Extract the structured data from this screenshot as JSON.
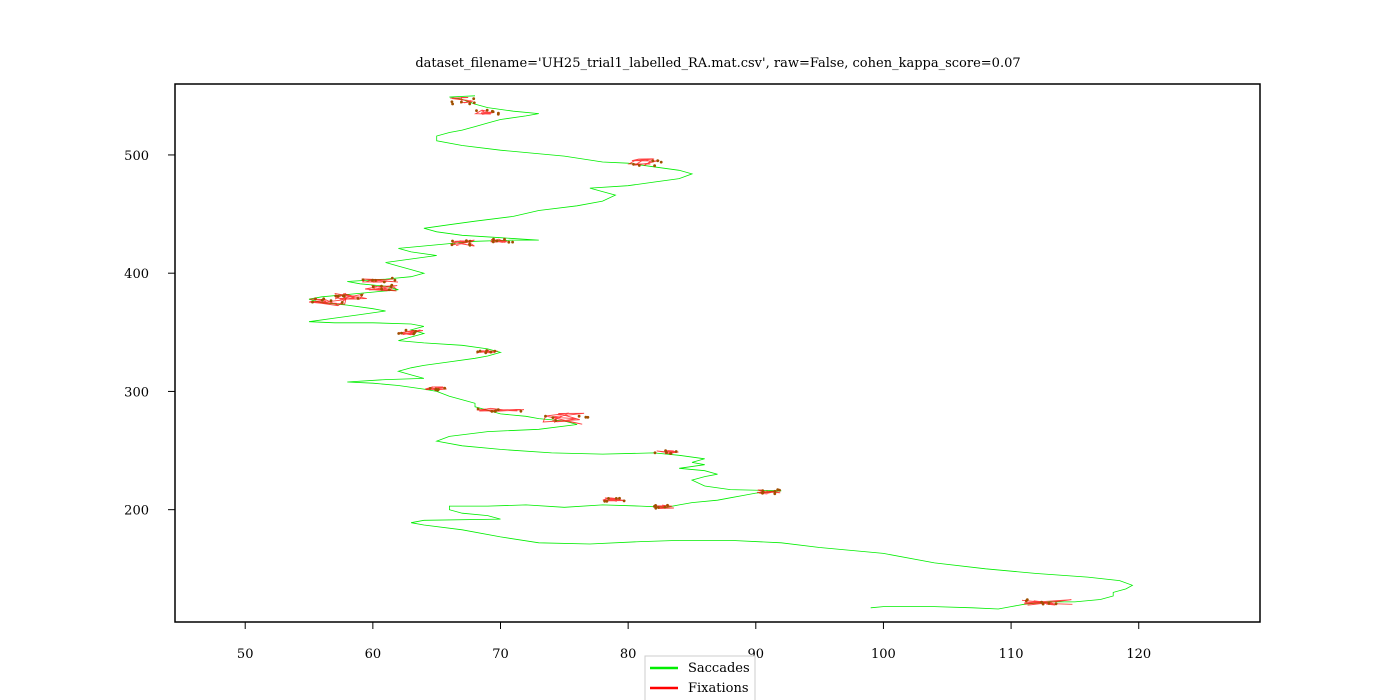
{
  "chart_data": {
    "type": "line",
    "title": "dataset_filename='UH25_trial1_labelled_RA.mat.csv', raw=False, cohen_kappa_score=0.07",
    "xlabel": "",
    "ylabel": "",
    "xlim": [
      44.5,
      129.5
    ],
    "ylim": [
      105,
      560
    ],
    "x_ticks": [
      50,
      60,
      70,
      80,
      90,
      100,
      110,
      120
    ],
    "y_ticks": [
      200,
      300,
      400,
      500
    ],
    "grid": false,
    "legend_position": "bottom-center",
    "series": [
      {
        "name": "Saccades",
        "color": "#00ee00",
        "points": [
          [
            99,
            117
          ],
          [
            100,
            118
          ],
          [
            104,
            118
          ],
          [
            107,
            117
          ],
          [
            109,
            116
          ],
          [
            110,
            118
          ],
          [
            111,
            120
          ],
          [
            113,
            122
          ],
          [
            115,
            122
          ],
          [
            117,
            124
          ],
          [
            118,
            127
          ],
          [
            118,
            130
          ],
          [
            119,
            133
          ],
          [
            119.5,
            136
          ],
          [
            118.5,
            140
          ],
          [
            116,
            143
          ],
          [
            112,
            146
          ],
          [
            108,
            150
          ],
          [
            104,
            155
          ],
          [
            100,
            163
          ],
          [
            95,
            168
          ],
          [
            92,
            172
          ],
          [
            88,
            174
          ],
          [
            84,
            174
          ],
          [
            81,
            173
          ],
          [
            77,
            171
          ],
          [
            73,
            172
          ],
          [
            70,
            177
          ],
          [
            67,
            183
          ],
          [
            64,
            187
          ],
          [
            63,
            189
          ],
          [
            64,
            191
          ],
          [
            70,
            192
          ],
          [
            69,
            195
          ],
          [
            67,
            197
          ],
          [
            66,
            200
          ],
          [
            66,
            203
          ],
          [
            69,
            203
          ],
          [
            72,
            204
          ],
          [
            75,
            202
          ],
          [
            78,
            204
          ],
          [
            81,
            203
          ],
          [
            83,
            202
          ],
          [
            84,
            204
          ],
          [
            85,
            206
          ],
          [
            87,
            208
          ],
          [
            88,
            210
          ],
          [
            89,
            212
          ],
          [
            90,
            214
          ],
          [
            92,
            216
          ],
          [
            88,
            217
          ],
          [
            86,
            220
          ],
          [
            85,
            225
          ],
          [
            86,
            228
          ],
          [
            87,
            230
          ],
          [
            86,
            233
          ],
          [
            84,
            235
          ],
          [
            86,
            238
          ],
          [
            85,
            240
          ],
          [
            86,
            243
          ],
          [
            84,
            246
          ],
          [
            82,
            248
          ],
          [
            78,
            247
          ],
          [
            74,
            248
          ],
          [
            70,
            251
          ],
          [
            67,
            254
          ],
          [
            65,
            258
          ],
          [
            66,
            262
          ],
          [
            69,
            266
          ],
          [
            73,
            268
          ],
          [
            76,
            272
          ],
          [
            75,
            275
          ],
          [
            73,
            277
          ],
          [
            72,
            279
          ],
          [
            70,
            281
          ],
          [
            69,
            284
          ],
          [
            68,
            287
          ],
          [
            68,
            290
          ],
          [
            67,
            293
          ],
          [
            66,
            296
          ],
          [
            65,
            300
          ],
          [
            64,
            302
          ],
          [
            62,
            305
          ],
          [
            60,
            307
          ],
          [
            58,
            308
          ],
          [
            61,
            310
          ],
          [
            64,
            311
          ],
          [
            63,
            314
          ],
          [
            62,
            317
          ],
          [
            63,
            320
          ],
          [
            64,
            322
          ],
          [
            66,
            325
          ],
          [
            68,
            328
          ],
          [
            69,
            330
          ],
          [
            70,
            333
          ],
          [
            69,
            336
          ],
          [
            67,
            339
          ],
          [
            64,
            341
          ],
          [
            62,
            343
          ],
          [
            63,
            346
          ],
          [
            64,
            349
          ],
          [
            63,
            352
          ],
          [
            64,
            355
          ],
          [
            63,
            357
          ],
          [
            60,
            358
          ],
          [
            57,
            358
          ],
          [
            55,
            359
          ],
          [
            57,
            362
          ],
          [
            59,
            365
          ],
          [
            61,
            368
          ],
          [
            60,
            370
          ],
          [
            58,
            373
          ],
          [
            56,
            375
          ],
          [
            55,
            378
          ],
          [
            56,
            380
          ],
          [
            58,
            382
          ],
          [
            60,
            384
          ],
          [
            62,
            386
          ],
          [
            61,
            389
          ],
          [
            59,
            391
          ],
          [
            58,
            393
          ],
          [
            61,
            395
          ],
          [
            63,
            397
          ],
          [
            64,
            400
          ],
          [
            63,
            403
          ],
          [
            62,
            406
          ],
          [
            61,
            409
          ],
          [
            63,
            412
          ],
          [
            65,
            415
          ],
          [
            63,
            418
          ],
          [
            62,
            421
          ],
          [
            64,
            423
          ],
          [
            66,
            425
          ],
          [
            68,
            427
          ],
          [
            71,
            428
          ],
          [
            73,
            428
          ],
          [
            70,
            430
          ],
          [
            67,
            432
          ],
          [
            65,
            435
          ],
          [
            64,
            438
          ],
          [
            66,
            441
          ],
          [
            68,
            444
          ],
          [
            71,
            448
          ],
          [
            73,
            453
          ],
          [
            76,
            457
          ],
          [
            78,
            461
          ],
          [
            79,
            466
          ],
          [
            78,
            469
          ],
          [
            77,
            472
          ],
          [
            80,
            474
          ],
          [
            82,
            477
          ],
          [
            84,
            480
          ],
          [
            85,
            484
          ],
          [
            84,
            487
          ],
          [
            82,
            490
          ],
          [
            80,
            493
          ],
          [
            78,
            494
          ],
          [
            75,
            499
          ],
          [
            70,
            504
          ],
          [
            67,
            508
          ],
          [
            65,
            512
          ],
          [
            65,
            516
          ],
          [
            66,
            519
          ],
          [
            67,
            521
          ],
          [
            68,
            524
          ],
          [
            69,
            527
          ],
          [
            70,
            530
          ],
          [
            72,
            533
          ],
          [
            73,
            535
          ],
          [
            71,
            537
          ],
          [
            69,
            540
          ],
          [
            68,
            543
          ],
          [
            67,
            547
          ],
          [
            66,
            549
          ],
          [
            68,
            550
          ]
        ]
      },
      {
        "name": "Fixations",
        "color": "#ff0000",
        "clusters": [
          {
            "x": [
              110.5,
              115
            ],
            "y": [
              119,
              124
            ]
          },
          {
            "x": [
              90,
              92
            ],
            "y": [
              213,
              217
            ]
          },
          {
            "x": [
              78,
              80
            ],
            "y": [
              207,
              210
            ]
          },
          {
            "x": [
              82,
              84
            ],
            "y": [
              201,
              204
            ]
          },
          {
            "x": [
              82,
              84
            ],
            "y": [
              247,
              250
            ]
          },
          {
            "x": [
              68,
              72
            ],
            "y": [
              283,
              286
            ]
          },
          {
            "x": [
              73,
              77
            ],
            "y": [
              272,
              282
            ]
          },
          {
            "x": [
              64,
              66
            ],
            "y": [
              301,
              304
            ]
          },
          {
            "x": [
              62,
              64
            ],
            "y": [
              348,
              352
            ]
          },
          {
            "x": [
              68,
              70
            ],
            "y": [
              332,
              335
            ]
          },
          {
            "x": [
              55,
              58
            ],
            "y": [
              372,
              380
            ]
          },
          {
            "x": [
              57,
              60
            ],
            "y": [
              378,
              383
            ]
          },
          {
            "x": [
              59,
              62
            ],
            "y": [
              385,
              390
            ]
          },
          {
            "x": [
              59,
              62
            ],
            "y": [
              392,
              396
            ]
          },
          {
            "x": [
              66,
              68
            ],
            "y": [
              423,
              428
            ]
          },
          {
            "x": [
              69,
              71
            ],
            "y": [
              426,
              429
            ]
          },
          {
            "x": [
              80,
              83
            ],
            "y": [
              490,
              497
            ]
          },
          {
            "x": [
              66,
              68
            ],
            "y": [
              543,
              549
            ]
          },
          {
            "x": [
              68,
              70
            ],
            "y": [
              534,
              538
            ]
          }
        ]
      }
    ]
  }
}
